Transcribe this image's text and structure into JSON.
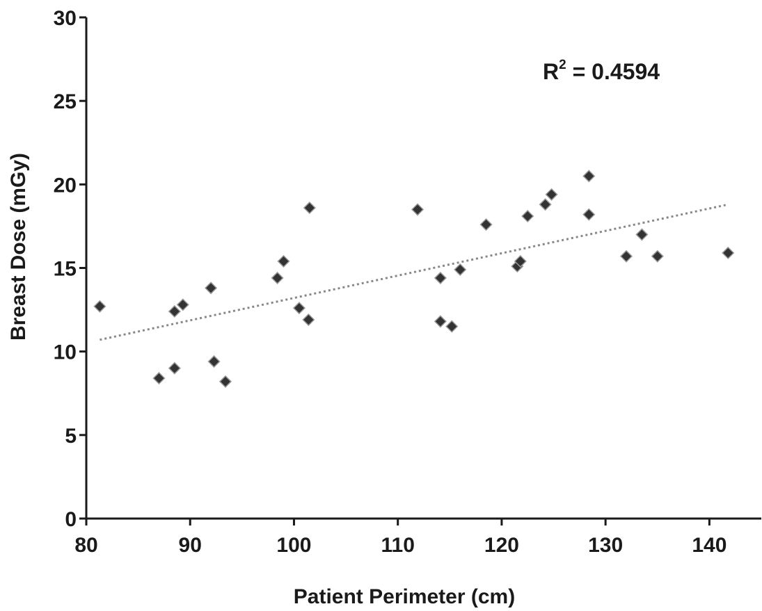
{
  "chart_data": {
    "type": "scatter",
    "title": "",
    "xlabel": "Patient Perimeter (cm)",
    "ylabel": "Breast Dose (mGy)",
    "xlim": [
      80,
      145
    ],
    "ylim": [
      0,
      30
    ],
    "x_ticks": [
      "80",
      "90",
      "100",
      "110",
      "120",
      "130",
      "140"
    ],
    "y_ticks": [
      "0",
      "5",
      "10",
      "15",
      "20",
      "25",
      "30"
    ],
    "grid": false,
    "legend": "none",
    "marker_color": "#333333",
    "trendline": {
      "style": "dotted",
      "color": "#888888",
      "x": [
        81.3,
        141.8
      ],
      "y": [
        10.7,
        18.8
      ]
    },
    "annotation": {
      "base": "R",
      "superscript": "2",
      "text": " = 0.4594"
    },
    "series": [
      {
        "x": [
          81.3,
          87.0,
          88.5,
          88.5,
          89.3,
          92.0,
          92.3,
          93.4,
          98.4,
          99.0,
          100.5,
          101.4,
          101.5,
          111.9,
          114.1,
          114.1,
          115.2,
          116.0,
          118.5,
          121.5,
          121.8,
          122.5,
          124.2,
          124.8,
          128.4,
          128.4,
          132.0,
          133.5,
          135.0,
          141.8
        ],
        "y": [
          12.7,
          8.4,
          9.0,
          12.4,
          12.8,
          13.8,
          9.4,
          8.2,
          14.4,
          15.4,
          12.6,
          11.9,
          18.6,
          18.5,
          14.4,
          11.8,
          11.5,
          14.9,
          17.6,
          15.1,
          15.4,
          18.1,
          18.8,
          19.4,
          20.5,
          18.2,
          15.7,
          17.0,
          15.7,
          15.9
        ]
      }
    ]
  }
}
